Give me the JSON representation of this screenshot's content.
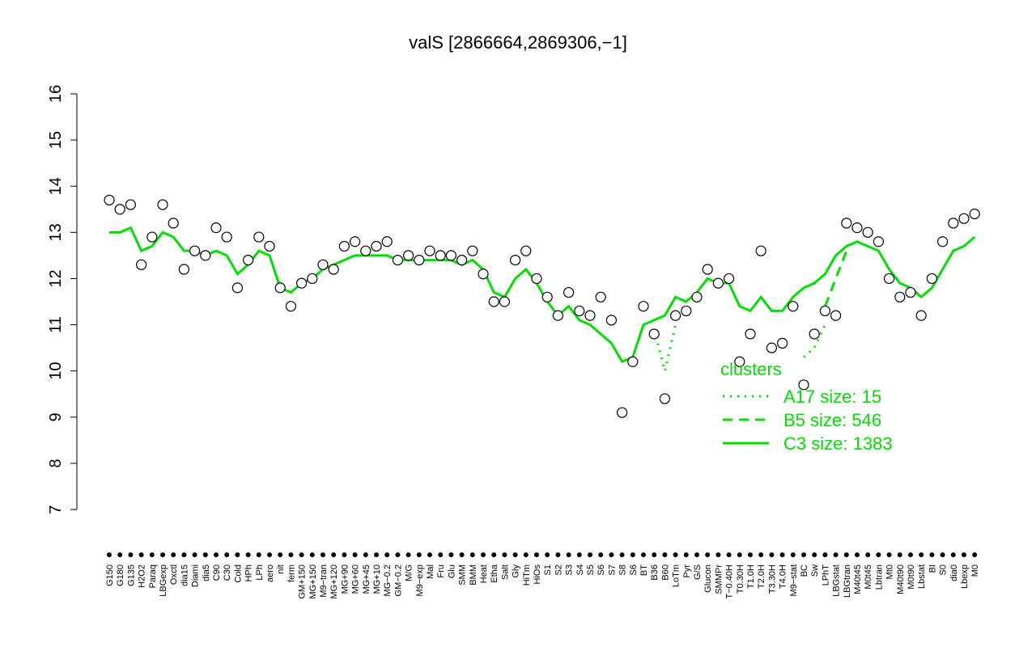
{
  "chart_data": {
    "type": "line",
    "title": "valS [2866664,2869306,−1]",
    "categories": [
      "G150",
      "G180",
      "G135",
      "H2O2",
      "Paraq",
      "LBGexp",
      "Oxctl",
      "dia15",
      "Diami",
      "dia5",
      "C90",
      "C30",
      "Cold",
      "HPh",
      "LPh",
      "aero",
      "nit",
      "ferm",
      "GM+150",
      "MG+150",
      "M9−tran",
      "MG+120",
      "MG+90",
      "MG+60",
      "MG+45",
      "MG+10",
      "MG−0.2",
      "GM−0.2",
      "M/G",
      "M9−exp",
      "Mal",
      "Fru",
      "Glu",
      "SMM",
      "BMM",
      "Heat",
      "Etha",
      "Salt",
      "Gly",
      "HiTm",
      "HiOs",
      "S1",
      "S2",
      "S3",
      "S4",
      "S5",
      "S6",
      "S7",
      "S8",
      "S6",
      "BT",
      "B36",
      "B60",
      "LoTm",
      "Pyr",
      "G/S",
      "Glucon",
      "SMMPr",
      "T−0.40H",
      "T0.30H",
      "T1.0H",
      "T2.0H",
      "T3.30H",
      "T4.0H",
      "M9−stat",
      "BC",
      "Sw",
      "LPhT",
      "LBGstat",
      "LBGtran",
      "M40t45",
      "M0t45",
      "Lbtran",
      "Mt0",
      "M40t90",
      "M0t90",
      "Lbstat",
      "BI",
      "S0",
      "dia0",
      "Lbexp",
      "M0"
    ],
    "values": [
      13.7,
      13.5,
      13.6,
      12.3,
      12.9,
      13.6,
      13.2,
      12.2,
      12.6,
      12.5,
      13.1,
      12.9,
      11.8,
      12.4,
      12.9,
      12.7,
      11.8,
      11.4,
      11.9,
      12.0,
      12.3,
      12.2,
      12.7,
      12.8,
      12.6,
      12.7,
      12.8,
      12.4,
      12.5,
      12.4,
      12.6,
      12.5,
      12.5,
      12.4,
      12.6,
      12.1,
      11.5,
      11.5,
      12.4,
      12.6,
      12.0,
      11.6,
      11.2,
      11.7,
      11.3,
      11.2,
      11.6,
      11.1,
      9.1,
      10.2,
      11.4,
      10.8,
      9.4,
      11.2,
      11.3,
      11.6,
      12.2,
      11.9,
      12.0,
      10.2,
      10.8,
      12.6,
      10.5,
      10.6,
      11.4,
      9.7,
      10.8,
      11.3,
      11.2,
      13.2,
      13.1,
      13.0,
      12.8,
      12.0,
      11.6,
      11.7,
      11.2,
      12.0,
      12.8,
      13.2,
      13.3,
      13.4
    ],
    "marker_fill": "#ffffff",
    "marker_stroke": "#000000",
    "legend_title": "clusters",
    "series": [
      {
        "name": "A17 size: 15",
        "color": "#00e000",
        "dash": "2,7",
        "values": [
          null,
          null,
          null,
          null,
          null,
          null,
          null,
          null,
          null,
          null,
          null,
          null,
          null,
          null,
          null,
          null,
          null,
          null,
          null,
          null,
          null,
          null,
          null,
          null,
          null,
          null,
          null,
          null,
          null,
          null,
          null,
          null,
          null,
          null,
          null,
          null,
          null,
          null,
          null,
          null,
          null,
          null,
          null,
          null,
          null,
          null,
          null,
          null,
          null,
          null,
          null,
          10.9,
          10.0,
          11.0,
          null,
          null,
          null,
          null,
          null,
          null,
          null,
          null,
          null,
          null,
          null,
          10.3,
          10.5,
          11.0,
          null,
          null,
          null,
          null,
          null,
          null,
          null,
          null,
          null,
          null,
          null,
          null,
          null,
          null
        ]
      },
      {
        "name": "B5 size: 546",
        "color": "#00e000",
        "dash": "12,8",
        "values": [
          null,
          null,
          null,
          null,
          null,
          null,
          null,
          null,
          null,
          null,
          null,
          null,
          null,
          null,
          null,
          null,
          null,
          null,
          null,
          null,
          null,
          null,
          null,
          null,
          null,
          null,
          null,
          null,
          null,
          null,
          null,
          null,
          null,
          null,
          null,
          null,
          null,
          null,
          null,
          null,
          null,
          null,
          null,
          null,
          null,
          null,
          null,
          null,
          null,
          null,
          null,
          null,
          null,
          null,
          null,
          null,
          null,
          null,
          null,
          null,
          null,
          null,
          null,
          null,
          null,
          null,
          null,
          11.4,
          12.0,
          12.6,
          null,
          null,
          null,
          null,
          null,
          null,
          null,
          null,
          null,
          null,
          null,
          null
        ]
      },
      {
        "name": "C3 size: 1383",
        "color": "#00e000",
        "dash": "",
        "values": [
          13.0,
          13.0,
          13.1,
          12.6,
          12.7,
          13.0,
          12.9,
          12.6,
          12.6,
          12.5,
          12.6,
          12.5,
          12.1,
          12.3,
          12.6,
          12.5,
          11.8,
          11.7,
          11.9,
          12.0,
          12.2,
          12.3,
          12.4,
          12.5,
          12.5,
          12.5,
          12.5,
          12.4,
          12.4,
          12.4,
          12.4,
          12.4,
          12.4,
          12.3,
          12.4,
          12.2,
          11.7,
          11.6,
          12.0,
          12.2,
          11.9,
          11.5,
          11.2,
          11.4,
          11.1,
          11.0,
          10.8,
          10.6,
          10.2,
          10.3,
          11.0,
          11.1,
          11.2,
          11.6,
          11.5,
          11.7,
          12.0,
          11.9,
          11.9,
          11.4,
          11.3,
          11.6,
          11.3,
          11.3,
          11.6,
          11.8,
          11.9,
          12.1,
          12.5,
          12.7,
          12.8,
          12.7,
          12.6,
          12.2,
          11.9,
          11.8,
          11.6,
          11.8,
          12.2,
          12.6,
          12.7,
          12.9
        ]
      }
    ],
    "ylim": [
      7,
      16
    ],
    "yticks": [
      7,
      8,
      9,
      10,
      11,
      12,
      13,
      14,
      15,
      16
    ]
  }
}
